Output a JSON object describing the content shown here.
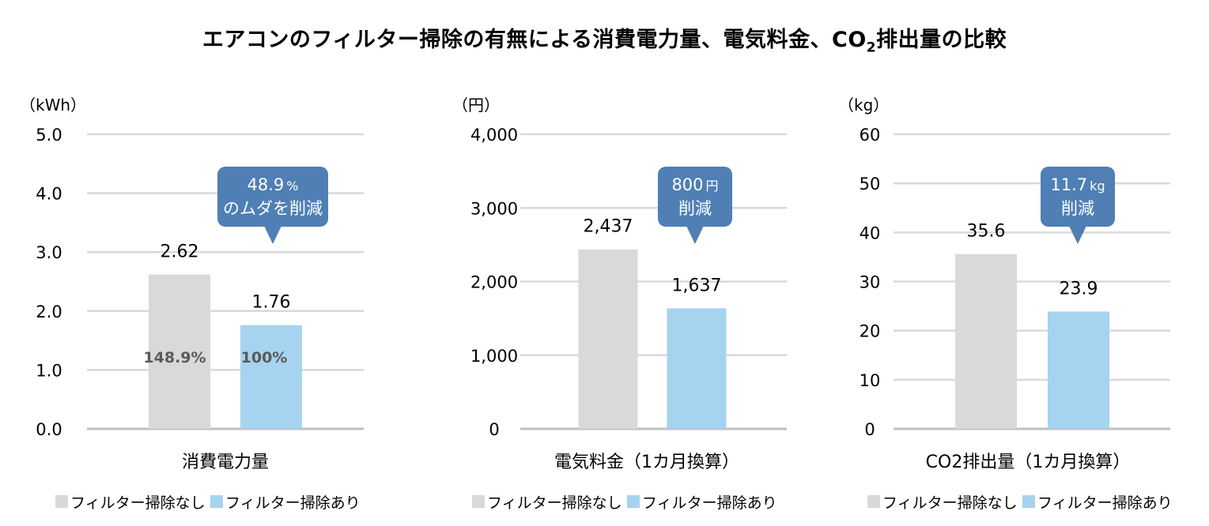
{
  "title": {
    "main": "エアコンのフィルター掃除の有無による消費電力量、電気料金、CO",
    "sub": "2",
    "tail": "排出量の比較"
  },
  "colors": {
    "no_clean": "#d9d9d9",
    "clean": "#a6d3ef",
    "callout": "#4f7fb5",
    "grid": "#d9d9d9"
  },
  "chart_data": [
    {
      "type": "bar",
      "unit": "（kWh）",
      "xlabel": "消費電力量",
      "ylim": [
        0,
        5
      ],
      "yticks": [
        "0.0",
        "1.0",
        "2.0",
        "3.0",
        "4.0",
        "5.0"
      ],
      "categories": [
        "フィルター掃除なし",
        "フィルター掃除あり"
      ],
      "values": [
        2.62,
        1.76
      ],
      "value_labels": [
        "2.62",
        "1.76"
      ],
      "inner_labels": [
        "148.9%",
        "100%"
      ],
      "callout": {
        "line1_num": "48.9",
        "line1_unit": "%",
        "line2": "のムダを削減"
      },
      "legend": [
        "フィルター掃除なし",
        "フィルター掃除あり"
      ]
    },
    {
      "type": "bar",
      "unit": "（円）",
      "xlabel": "電気料金（1カ月換算）",
      "ylim": [
        0,
        4000
      ],
      "yticks": [
        "0",
        "1,000",
        "2,000",
        "3,000",
        "4,000"
      ],
      "categories": [
        "フィルター掃除なし",
        "フィルター掃除あり"
      ],
      "values": [
        2437,
        1637
      ],
      "value_labels": [
        "2,437",
        "1,637"
      ],
      "callout": {
        "line1_num": "800",
        "line1_unit": "円",
        "line2": "削減"
      },
      "legend": [
        "フィルター掃除なし",
        "フィルター掃除あり"
      ]
    },
    {
      "type": "bar",
      "unit": "（kg）",
      "xlabel": "CO2排出量（1カ月換算）",
      "ylim": [
        0,
        60
      ],
      "yticks": [
        "0",
        "10",
        "20",
        "30",
        "40",
        "50",
        "60"
      ],
      "categories": [
        "フィルター掃除なし",
        "フィルター掃除あり"
      ],
      "values": [
        35.6,
        23.9
      ],
      "value_labels": [
        "35.6",
        "23.9"
      ],
      "callout": {
        "line1_num": "11.7",
        "line1_unit": "kg",
        "line2": "削減"
      },
      "legend": [
        "フィルター掃除なし",
        "フィルター掃除あり"
      ]
    }
  ]
}
